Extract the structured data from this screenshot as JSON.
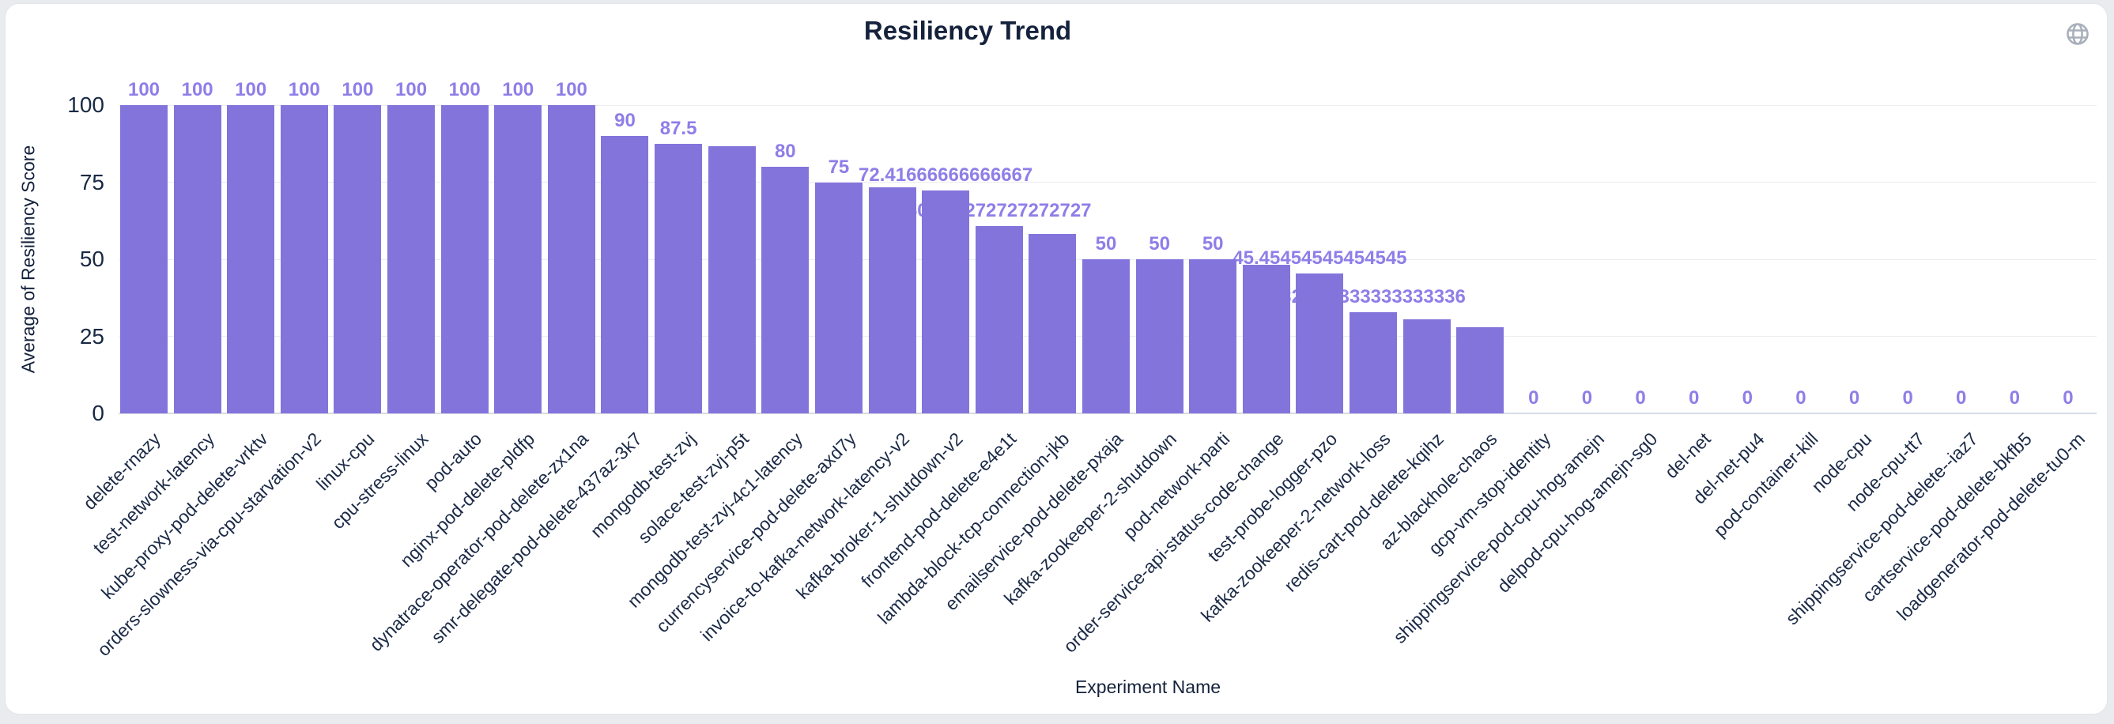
{
  "page": {
    "title": "Resiliency Trend"
  },
  "chart_data": {
    "type": "bar",
    "title": "Resiliency Trend",
    "xlabel": "Experiment Name",
    "ylabel": "Average of Resiliency Score",
    "ylim": [
      0,
      100
    ],
    "yticks": [
      0,
      25,
      50,
      75,
      100
    ],
    "grid": true,
    "legend_position": "none",
    "bar_color": "#8374dc",
    "value_label_color": "#8e7ee8",
    "axis_text_color": "#182944",
    "globe_icon_color": "#a9b0bb",
    "categories": [
      "delete-rnazy",
      "test-network-latency",
      "kube-proxy-pod-delete-vrktv",
      "orders-slowness-via-cpu-starvation-v2",
      "linux-cpu",
      "cpu-stress-linux",
      "pod-auto",
      "nginx-pod-delete-pldfp",
      "dynatrace-operator-pod-delete-zx1na",
      "smr-delegate-pod-delete-437az-3k7",
      "mongodb-test-zvj",
      "solace-test-zvj-p5t",
      "mongodb-test-zvj-4c1-latency",
      "currencyservice-pod-delete-axd7y",
      "invoice-to-kafka-network-latency-v2",
      "kafka-broker-1-shutdown-v2",
      "frontend-pod-delete-e4e1t",
      "lambda-block-tcp-connection-jkb",
      "emailservice-pod-delete-pxaja",
      "kafka-zookeeper-2-shutdown",
      "pod-network-parti",
      "order-service-api-status-code-change",
      "test-probe-logger-pzo",
      "kafka-zookeeper-2-network-loss",
      "redis-cart-pod-delete-kqihz",
      "az-blackhole-chaos",
      "gcp-vm-stop-identity",
      "shippingservice-pod-cpu-hog-amejn",
      "delpod-cpu-hog-amejn-sg0",
      "del-net",
      "del-net-pu4",
      "pod-container-kill",
      "node-cpu",
      "node-cpu-tt7",
      "shippingservice-pod-delete--iaz7",
      "cartservice-pod-delete-bkfb5",
      "loadgenerator-pod-delete-tu0-m"
    ],
    "values": [
      100,
      100,
      100,
      100,
      100,
      100,
      100,
      100,
      100,
      90,
      87.5,
      86.67,
      80,
      75,
      73.33,
      72.41666666666667,
      60.72727272727273,
      58.33,
      50,
      50,
      50,
      48.33,
      45.45454545454545,
      32.833333333333336,
      30.4,
      27.9,
      0,
      0,
      0,
      0,
      0,
      0,
      0,
      0,
      0,
      0,
      0
    ],
    "value_labels": [
      "100",
      "100",
      "100",
      "100",
      "100",
      "100",
      "100",
      "100",
      "100",
      "90",
      "87.5",
      "",
      "80",
      "75",
      "",
      "72.41666666666667",
      "60.727272727272727",
      "",
      "50",
      "50",
      "50",
      "",
      "45.45454545454545",
      "32.833333333333336",
      "",
      "",
      "0",
      "0",
      "0",
      "0",
      "0",
      "0",
      "0",
      "0",
      "0",
      "0",
      "0"
    ]
  }
}
